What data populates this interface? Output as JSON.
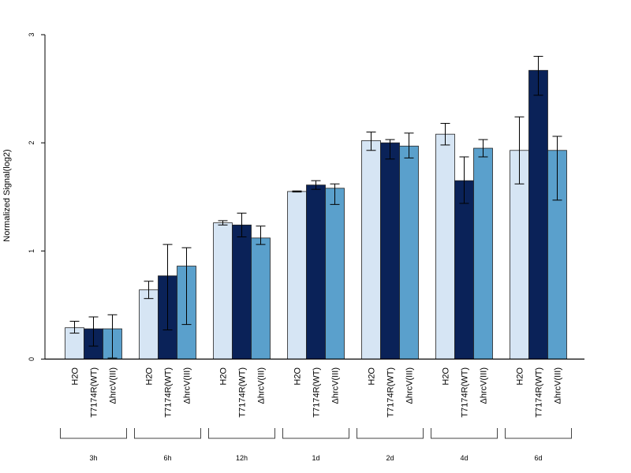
{
  "chart_data": {
    "type": "bar",
    "title": "",
    "xlabel": "",
    "ylabel": "Normalized Signal(log2)",
    "ylim": [
      0,
      3
    ],
    "yticks": [
      "0",
      "1",
      "2",
      "3"
    ],
    "grid": false,
    "legend": "none",
    "groups": [
      "3h",
      "6h",
      "12h",
      "1d",
      "2d",
      "4d",
      "6d"
    ],
    "bar_labels": [
      "H2O",
      "T7174R(WT)",
      "ΔhrcV(III)"
    ],
    "series": [
      {
        "color": "#d6e5f4",
        "values": [
          0.29,
          0.64,
          1.26,
          1.55,
          2.02,
          2.08,
          1.93
        ],
        "err_low": [
          0.24,
          0.56,
          1.24,
          1.545,
          1.93,
          1.98,
          1.62
        ],
        "err_high": [
          0.35,
          0.72,
          1.28,
          1.555,
          2.1,
          2.18,
          2.24
        ]
      },
      {
        "color": "#0a2258",
        "values": [
          0.28,
          0.77,
          1.24,
          1.61,
          2.0,
          1.65,
          2.67
        ],
        "err_low": [
          0.12,
          0.27,
          1.13,
          1.57,
          1.85,
          1.44,
          2.44
        ],
        "err_high": [
          0.39,
          1.06,
          1.35,
          1.65,
          2.03,
          1.87,
          2.8
        ]
      },
      {
        "color": "#5aa0cc",
        "values": [
          0.28,
          0.86,
          1.12,
          1.58,
          1.97,
          1.95,
          1.93
        ],
        "err_low": [
          0.01,
          0.32,
          1.06,
          1.43,
          1.86,
          1.87,
          1.47
        ],
        "err_high": [
          0.41,
          1.03,
          1.23,
          1.62,
          2.09,
          2.03,
          2.06
        ]
      }
    ]
  }
}
